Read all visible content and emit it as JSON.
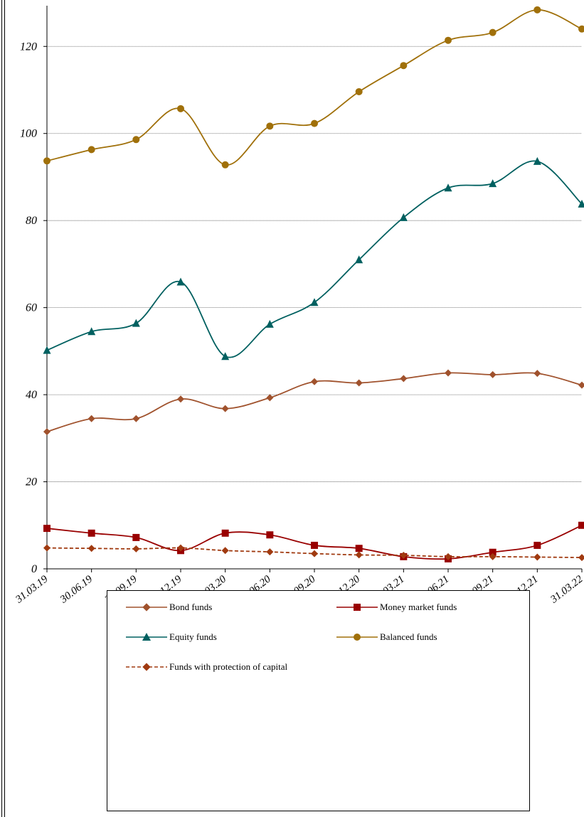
{
  "chart_data": {
    "type": "line",
    "categories": [
      "31.03.19",
      "30.06.19",
      "30.09.19",
      "31.12.19",
      "31.03.20",
      "30.06.20",
      "30.09.20",
      "31.12.20",
      "31.03.21",
      "30.06.21",
      "30.09.21",
      "31.12.21",
      "31.03.22"
    ],
    "ylim": [
      0,
      130
    ],
    "yticks": [
      "0",
      "20",
      "40",
      "60",
      "80",
      "100",
      "120"
    ],
    "ytick_values": [
      0,
      20,
      40,
      60,
      80,
      100,
      120
    ],
    "grid": true,
    "legend_position": "bottom",
    "series": [
      {
        "name": "Bond funds",
        "color": "#A0522D",
        "marker": "diamond",
        "dashed": false,
        "values": [
          31.5,
          34.5,
          34.5,
          39,
          36.8,
          39.3,
          43,
          42.7,
          43.7,
          45,
          44.6,
          44.9,
          42.2
        ]
      },
      {
        "name": "Money market funds",
        "color": "#990000",
        "marker": "square",
        "dashed": false,
        "values": [
          9.3,
          8.2,
          7.2,
          4.2,
          8.2,
          7.8,
          5.4,
          4.7,
          2.8,
          2.3,
          3.8,
          5.4,
          10
        ]
      },
      {
        "name": "Equity funds",
        "color": "#006060",
        "marker": "triangle",
        "dashed": false,
        "values": [
          50.2,
          54.5,
          56.4,
          65.9,
          48.8,
          56.2,
          61.2,
          71,
          80.7,
          87.5,
          88.5,
          93.6,
          83.8
        ]
      },
      {
        "name": "Balanced funds",
        "color": "#A0700A",
        "marker": "circle",
        "dashed": false,
        "values": [
          93.7,
          96.3,
          98.6,
          105.7,
          92.8,
          101.7,
          102.3,
          109.6,
          115.6,
          121.4,
          123.2,
          128.4,
          124
        ]
      },
      {
        "name": "Funds with protection of capital",
        "color": "#A03A10",
        "marker": "diamond",
        "dashed": true,
        "values": [
          4.8,
          4.7,
          4.6,
          4.8,
          4.2,
          3.9,
          3.5,
          3.2,
          3.1,
          2.8,
          2.8,
          2.7,
          2.6
        ]
      }
    ]
  }
}
